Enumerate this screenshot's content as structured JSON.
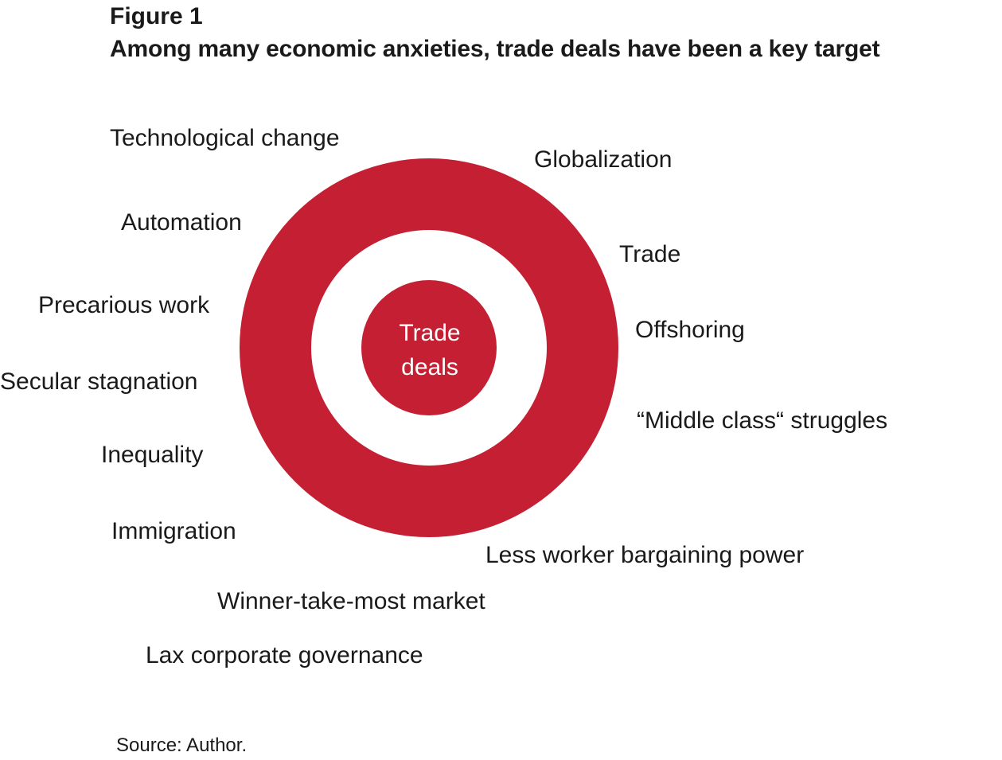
{
  "figure": {
    "label": "Figure 1",
    "title": "Among many economic anxieties, trade deals have been a key target"
  },
  "colors": {
    "target_red": "#c41f33",
    "background": "#ffffff",
    "text": "#1a1a1a"
  },
  "center": {
    "line1": "Trade",
    "line2": "deals"
  },
  "anxieties": {
    "technological_change": "Technological change",
    "globalization": "Globalization",
    "automation": "Automation",
    "trade": "Trade",
    "precarious_work": "Precarious work",
    "offshoring": "Offshoring",
    "secular_stagnation": "Secular stagnation",
    "middle_class_struggles": "“Middle class“ struggles",
    "inequality": "Inequality",
    "immigration": "Immigration",
    "less_worker_bargaining_power": "Less worker bargaining power",
    "winner_take_most_market": "Winner-take-most market",
    "lax_corporate_governance": "Lax corporate governance"
  },
  "source": "Source: Author."
}
